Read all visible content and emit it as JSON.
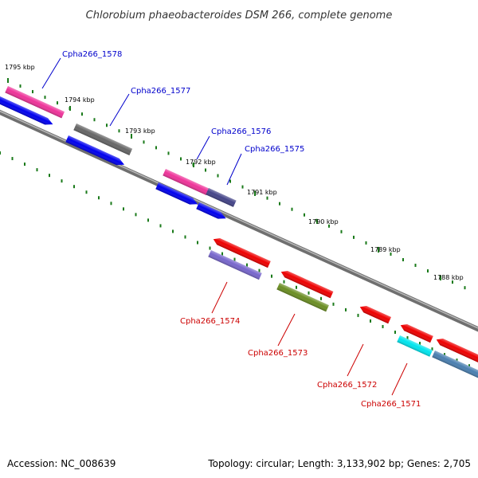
{
  "title": "Chlorobium phaeobacteroides DSM 266, complete genome",
  "footer": {
    "accession": "Accession: NC_008639",
    "summary": "Topology: circular; Length: 3,133,902 bp; Genes: 2,705"
  },
  "colors": {
    "backbone": "#6f6f6f",
    "tick": "#1a7a1a",
    "label_forward": "#0000cc",
    "label_reverse": "#cc0000"
  },
  "ticks": [
    {
      "label": "1795 kbp"
    },
    {
      "label": "1794 kbp"
    },
    {
      "label": "1793 kbp"
    },
    {
      "label": "1792 kbp"
    },
    {
      "label": "1791 kbp"
    },
    {
      "label": "1790 kbp"
    },
    {
      "label": "1789 kbp"
    },
    {
      "label": "1788 kbp"
    }
  ],
  "features": [
    {
      "name": "fwd-1-pink",
      "strand": "forward",
      "color": "#ee3399"
    },
    {
      "name": "fwd-1-blue",
      "strand": "forward",
      "color": "#0000ee"
    },
    {
      "name": "fwd-2-gray",
      "strand": "forward",
      "color": "#666666"
    },
    {
      "name": "fwd-2-blue",
      "strand": "forward",
      "color": "#0000ee"
    },
    {
      "name": "fwd-3-pink",
      "strand": "forward",
      "color": "#ee3399"
    },
    {
      "name": "fwd-3-navy",
      "strand": "forward",
      "color": "#444488"
    },
    {
      "name": "fwd-3-blue-a",
      "strand": "forward",
      "color": "#0000ee"
    },
    {
      "name": "fwd-3-blue-b",
      "strand": "forward",
      "color": "#0000ee"
    },
    {
      "name": "rev-1-red",
      "strand": "reverse",
      "color": "#ee0000"
    },
    {
      "name": "rev-1-violet",
      "strand": "reverse",
      "color": "#7766cc"
    },
    {
      "name": "rev-2-red",
      "strand": "reverse",
      "color": "#ee0000"
    },
    {
      "name": "rev-2-olive",
      "strand": "reverse",
      "color": "#6b8e23"
    },
    {
      "name": "rev-3-red",
      "strand": "reverse",
      "color": "#ee0000"
    },
    {
      "name": "rev-4-red",
      "strand": "reverse",
      "color": "#ee0000"
    },
    {
      "name": "rev-4-cyan",
      "strand": "reverse",
      "color": "#00e5ee"
    },
    {
      "name": "rev-5-red",
      "strand": "reverse",
      "color": "#ee0000"
    },
    {
      "name": "rev-5-steel",
      "strand": "reverse",
      "color": "#4a7fb0"
    }
  ],
  "gene_labels": [
    {
      "text": "Cpha266_1578",
      "strand": "forward"
    },
    {
      "text": "Cpha266_1577",
      "strand": "forward"
    },
    {
      "text": "Cpha266_1576",
      "strand": "forward"
    },
    {
      "text": "Cpha266_1575",
      "strand": "forward"
    },
    {
      "text": "Cpha266_1574",
      "strand": "reverse"
    },
    {
      "text": "Cpha266_1573",
      "strand": "reverse"
    },
    {
      "text": "Cpha266_1572",
      "strand": "reverse"
    },
    {
      "text": "Cpha266_1571",
      "strand": "reverse"
    }
  ]
}
